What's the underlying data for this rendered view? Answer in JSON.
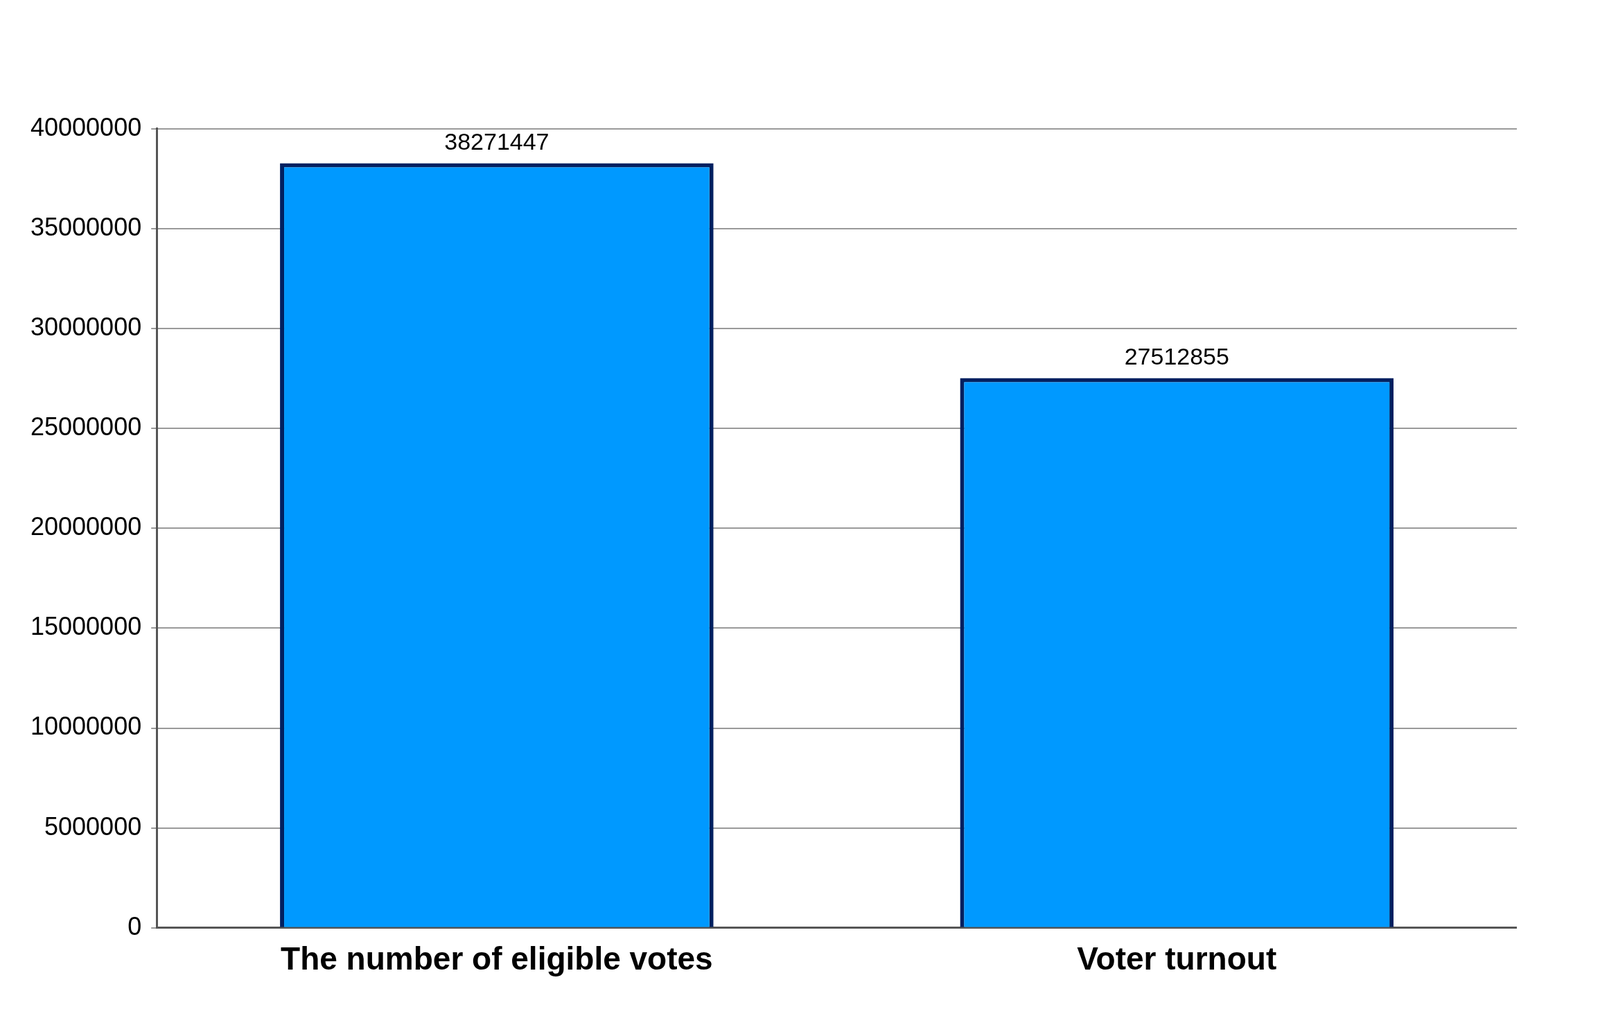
{
  "chart_data": {
    "type": "bar",
    "categories": [
      "The number of eligible votes",
      "Voter turnout"
    ],
    "values": [
      38271447,
      27512855
    ],
    "color": "#0099ff",
    "ylim": [
      0,
      40000000
    ],
    "yticks": [
      0,
      5000000,
      10000000,
      15000000,
      20000000,
      25000000,
      30000000,
      35000000,
      40000000
    ],
    "grid": true,
    "data_labels": true
  }
}
